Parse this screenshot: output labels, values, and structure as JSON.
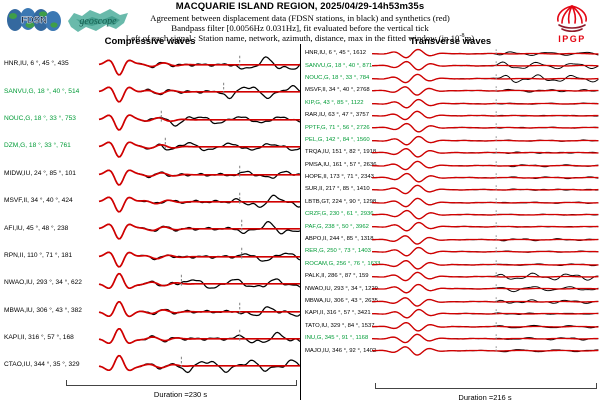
{
  "header": {
    "title": "MACQUARIE ISLAND REGION, 2025/04/29-14h53m35s",
    "line2": "Agreement between displacement data (FDSN stations, in black) and synthetics (red)",
    "line3": "Bandpass filter [0.0056Hz 0.031Hz], fit evaluated before the vertical tick",
    "line4_prefix": "Left of each signal : Station name, network, azimuth, distance, max in the fitted window (in 10",
    "line4_sup": "-8",
    "line4_suffix": "m)"
  },
  "logos": {
    "fdsn": "FDSN",
    "geoscope": "geoscope",
    "ipgp": "IPGP"
  },
  "colors": {
    "observed": "#000000",
    "synthetic": "#d10000",
    "g_station_label": "#009b36",
    "station_label": "#000000",
    "fit_tick": "#8c8c8c",
    "divider": "#000000",
    "ipgp_red": "#e30613",
    "geoscope_teal": "#4fae9c",
    "fdsn_blue": "#34699f",
    "fdsn_green": "#3f9e49"
  },
  "chart_data": [
    {
      "type": "line",
      "panel": "left",
      "title": "Compressive waves",
      "duration_s": 230,
      "duration_label": "Duration =230 s",
      "legend": {
        "black": "observed displacement (FDSN data)",
        "red": "synthetic"
      },
      "stations": [
        {
          "station": "HNR",
          "network": "IU",
          "azimuth_deg": 6,
          "distance_deg": 45,
          "max_amp": 435,
          "label_color": "black",
          "tick_frac": 0.7,
          "polarity": -1,
          "diverge": 1.0
        },
        {
          "station": "SANVU",
          "network": "G",
          "azimuth_deg": 18,
          "distance_deg": 40,
          "max_amp": 514,
          "label_color": "green",
          "tick_frac": 0.62,
          "polarity": -1,
          "diverge": 1.0
        },
        {
          "station": "NOUC",
          "network": "G",
          "azimuth_deg": 18,
          "distance_deg": 33,
          "max_amp": 753,
          "label_color": "green",
          "tick_frac": 0.31,
          "polarity": -1,
          "diverge": 0.65
        },
        {
          "station": "DZM",
          "network": "G",
          "azimuth_deg": 18,
          "distance_deg": 33,
          "max_amp": 761,
          "label_color": "green",
          "tick_frac": 0.33,
          "polarity": -1,
          "diverge": 0.65
        },
        {
          "station": "MIDW",
          "network": "IU",
          "azimuth_deg": 24,
          "distance_deg": 85,
          "max_amp": 101,
          "label_color": "black",
          "tick_frac": 0.7,
          "polarity": -1,
          "diverge": 0.5
        },
        {
          "station": "MSVF",
          "network": "II",
          "azimuth_deg": 34,
          "distance_deg": 40,
          "max_amp": 424,
          "label_color": "black",
          "tick_frac": 0.7,
          "polarity": -1,
          "diverge": 0.9
        },
        {
          "station": "AFI",
          "network": "IU",
          "azimuth_deg": 45,
          "distance_deg": 48,
          "max_amp": 238,
          "label_color": "black",
          "tick_frac": 0.71,
          "polarity": -1,
          "diverge": 0.85
        },
        {
          "station": "RPN",
          "network": "II",
          "azimuth_deg": 110,
          "distance_deg": 71,
          "max_amp": 181,
          "label_color": "black",
          "tick_frac": 0.71,
          "polarity": -1,
          "diverge": 0.7
        },
        {
          "station": "NWAO",
          "network": "IU",
          "azimuth_deg": 293,
          "distance_deg": 34,
          "max_amp": 622,
          "label_color": "black",
          "tick_frac": 0.41,
          "polarity": 1,
          "diverge": 0.8
        },
        {
          "station": "MBWA",
          "network": "IU",
          "azimuth_deg": 306,
          "distance_deg": 43,
          "max_amp": 382,
          "label_color": "black",
          "tick_frac": 0.7,
          "polarity": 1,
          "diverge": 0.6
        },
        {
          "station": "KAPI",
          "network": "II",
          "azimuth_deg": 316,
          "distance_deg": 57,
          "max_amp": 168,
          "label_color": "black",
          "tick_frac": 0.7,
          "polarity": 1,
          "diverge": 0.75
        },
        {
          "station": "CTAO",
          "network": "IU",
          "azimuth_deg": 344,
          "distance_deg": 35,
          "max_amp": 329,
          "label_color": "black",
          "tick_frac": 0.41,
          "polarity": 1,
          "diverge": 0.9
        }
      ]
    },
    {
      "type": "line",
      "panel": "right",
      "title": "Transverse waves",
      "duration_s": 216,
      "duration_label": "Duration =216 s",
      "legend": {
        "black": "observed displacement (FDSN data)",
        "red": "synthetic"
      },
      "stations": [
        {
          "station": "HNR",
          "network": "IU",
          "azimuth_deg": 6,
          "distance_deg": 45,
          "max_amp": 1612,
          "label_color": "black",
          "tick_frac": 0.547,
          "polarity": 1,
          "diverge": 0.55
        },
        {
          "station": "SANVU",
          "network": "G",
          "azimuth_deg": 18,
          "distance_deg": 40,
          "max_amp": 871,
          "label_color": "green",
          "tick_frac": 0.547,
          "polarity": -1,
          "diverge": 0.95
        },
        {
          "station": "NOUC",
          "network": "G",
          "azimuth_deg": 18,
          "distance_deg": 33,
          "max_amp": 784,
          "label_color": "green",
          "tick_frac": 0.547,
          "polarity": 1,
          "diverge": 1.0
        },
        {
          "station": "MSVF",
          "network": "II",
          "azimuth_deg": 34,
          "distance_deg": 40,
          "max_amp": 2768,
          "label_color": "black",
          "tick_frac": 0.547,
          "polarity": -1,
          "diverge": 0.3
        },
        {
          "station": "KIP",
          "network": "G",
          "azimuth_deg": 43,
          "distance_deg": 85,
          "max_amp": 1122,
          "label_color": "green",
          "tick_frac": 0.547,
          "polarity": 1,
          "diverge": 0.15
        },
        {
          "station": "RAR",
          "network": "IU",
          "azimuth_deg": 63,
          "distance_deg": 47,
          "max_amp": 3757,
          "label_color": "black",
          "tick_frac": 0.547,
          "polarity": 1,
          "diverge": 0.12
        },
        {
          "station": "PPTF",
          "network": "G",
          "azimuth_deg": 71,
          "distance_deg": 56,
          "max_amp": 2726,
          "label_color": "green",
          "tick_frac": 0.547,
          "polarity": -1,
          "diverge": 0.1
        },
        {
          "station": "PEL",
          "network": "G",
          "azimuth_deg": 142,
          "distance_deg": 84,
          "max_amp": 1560,
          "label_color": "green",
          "tick_frac": 0.547,
          "polarity": 1,
          "diverge": 0.1
        },
        {
          "station": "TRQA",
          "network": "IU",
          "azimuth_deg": 151,
          "distance_deg": 82,
          "max_amp": 1918,
          "label_color": "black",
          "tick_frac": 0.547,
          "polarity": -1,
          "diverge": 0.15
        },
        {
          "station": "PMSA",
          "network": "IU",
          "azimuth_deg": 161,
          "distance_deg": 57,
          "max_amp": 2636,
          "label_color": "black",
          "tick_frac": 0.547,
          "polarity": 1,
          "diverge": 0.2
        },
        {
          "station": "HOPE",
          "network": "II",
          "azimuth_deg": 173,
          "distance_deg": 71,
          "max_amp": 2343,
          "label_color": "black",
          "tick_frac": 0.547,
          "polarity": -1,
          "diverge": 0.15
        },
        {
          "station": "SUR",
          "network": "II",
          "azimuth_deg": 217,
          "distance_deg": 85,
          "max_amp": 1410,
          "label_color": "black",
          "tick_frac": 0.547,
          "polarity": 1,
          "diverge": 0.12
        },
        {
          "station": "LBTB",
          "network": "GT",
          "azimuth_deg": 224,
          "distance_deg": 90,
          "max_amp": 1298,
          "label_color": "black",
          "tick_frac": 0.547,
          "polarity": 1,
          "diverge": 0.15
        },
        {
          "station": "CRZF",
          "network": "G",
          "azimuth_deg": 230,
          "distance_deg": 61,
          "max_amp": 2936,
          "label_color": "green",
          "tick_frac": 0.547,
          "polarity": -1,
          "diverge": 0.1
        },
        {
          "station": "PAF",
          "network": "G",
          "azimuth_deg": 238,
          "distance_deg": 50,
          "max_amp": 3962,
          "label_color": "green",
          "tick_frac": 0.547,
          "polarity": 1,
          "diverge": 0.1
        },
        {
          "station": "ABPO",
          "network": "II",
          "azimuth_deg": 244,
          "distance_deg": 85,
          "max_amp": 1318,
          "label_color": "black",
          "tick_frac": 0.547,
          "polarity": -1,
          "diverge": 0.2
        },
        {
          "station": "RER",
          "network": "G",
          "azimuth_deg": 250,
          "distance_deg": 73,
          "max_amp": 1403,
          "label_color": "green",
          "tick_frac": 0.547,
          "polarity": 1,
          "diverge": 0.12
        },
        {
          "station": "ROCAM",
          "network": "G",
          "azimuth_deg": 256,
          "distance_deg": 76,
          "max_amp": 1633,
          "label_color": "green",
          "tick_frac": 0.547,
          "polarity": -1,
          "diverge": 0.2
        },
        {
          "station": "PALK",
          "network": "II",
          "azimuth_deg": 286,
          "distance_deg": 87,
          "max_amp": 159,
          "label_color": "black",
          "tick_frac": 0.547,
          "polarity": 1,
          "diverge": 0.9
        },
        {
          "station": "NWAO",
          "network": "IU",
          "azimuth_deg": 293,
          "distance_deg": 34,
          "max_amp": 1229,
          "label_color": "black",
          "tick_frac": 0.547,
          "polarity": 1,
          "diverge": 0.7
        },
        {
          "station": "MBWA",
          "network": "IU",
          "azimuth_deg": 306,
          "distance_deg": 43,
          "max_amp": 2635,
          "label_color": "black",
          "tick_frac": 0.547,
          "polarity": -1,
          "diverge": 0.45
        },
        {
          "station": "KAPI",
          "network": "II",
          "azimuth_deg": 316,
          "distance_deg": 57,
          "max_amp": 3421,
          "label_color": "black",
          "tick_frac": 0.547,
          "polarity": 1,
          "diverge": 0.25
        },
        {
          "station": "TATO",
          "network": "IU",
          "azimuth_deg": 329,
          "distance_deg": 84,
          "max_amp": 1537,
          "label_color": "black",
          "tick_frac": 0.547,
          "polarity": -1,
          "diverge": 0.35
        },
        {
          "station": "INU",
          "network": "G",
          "azimuth_deg": 345,
          "distance_deg": 91,
          "max_amp": 1168,
          "label_color": "green",
          "tick_frac": 0.547,
          "polarity": 1,
          "diverge": 0.3
        },
        {
          "station": "MAJO",
          "network": "IU",
          "azimuth_deg": 346,
          "distance_deg": 92,
          "max_amp": 1402,
          "label_color": "black",
          "tick_frac": 0.547,
          "polarity": -1,
          "diverge": 0.3
        }
      ]
    }
  ]
}
